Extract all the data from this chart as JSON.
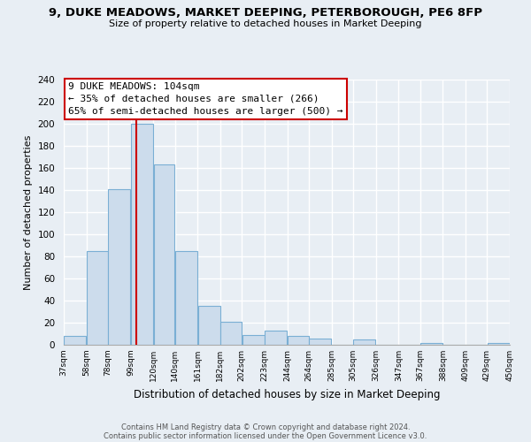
{
  "title_line1": "9, DUKE MEADOWS, MARKET DEEPING, PETERBOROUGH, PE6 8FP",
  "title_line2": "Size of property relative to detached houses in Market Deeping",
  "xlabel": "Distribution of detached houses by size in Market Deeping",
  "ylabel": "Number of detached properties",
  "bar_color": "#ccdcec",
  "bar_edgecolor": "#7aafd4",
  "vline_x": 104,
  "vline_color": "#cc0000",
  "annotation_title": "9 DUKE MEADOWS: 104sqm",
  "annotation_line1": "← 35% of detached houses are smaller (266)",
  "annotation_line2": "65% of semi-detached houses are larger (500) →",
  "annotation_box_color": "#ffffff",
  "annotation_box_edgecolor": "#cc0000",
  "bins": [
    37,
    58,
    78,
    99,
    120,
    140,
    161,
    182,
    202,
    223,
    244,
    264,
    285,
    305,
    326,
    347,
    367,
    388,
    409,
    429,
    450
  ],
  "counts": [
    8,
    85,
    141,
    200,
    163,
    85,
    35,
    21,
    9,
    13,
    8,
    6,
    0,
    5,
    0,
    0,
    2,
    0,
    0,
    2
  ],
  "ylim": [
    0,
    240
  ],
  "yticks": [
    0,
    20,
    40,
    60,
    80,
    100,
    120,
    140,
    160,
    180,
    200,
    220,
    240
  ],
  "footnote1": "Contains HM Land Registry data © Crown copyright and database right 2024.",
  "footnote2": "Contains public sector information licensed under the Open Government Licence v3.0.",
  "background_color": "#e8eef4"
}
